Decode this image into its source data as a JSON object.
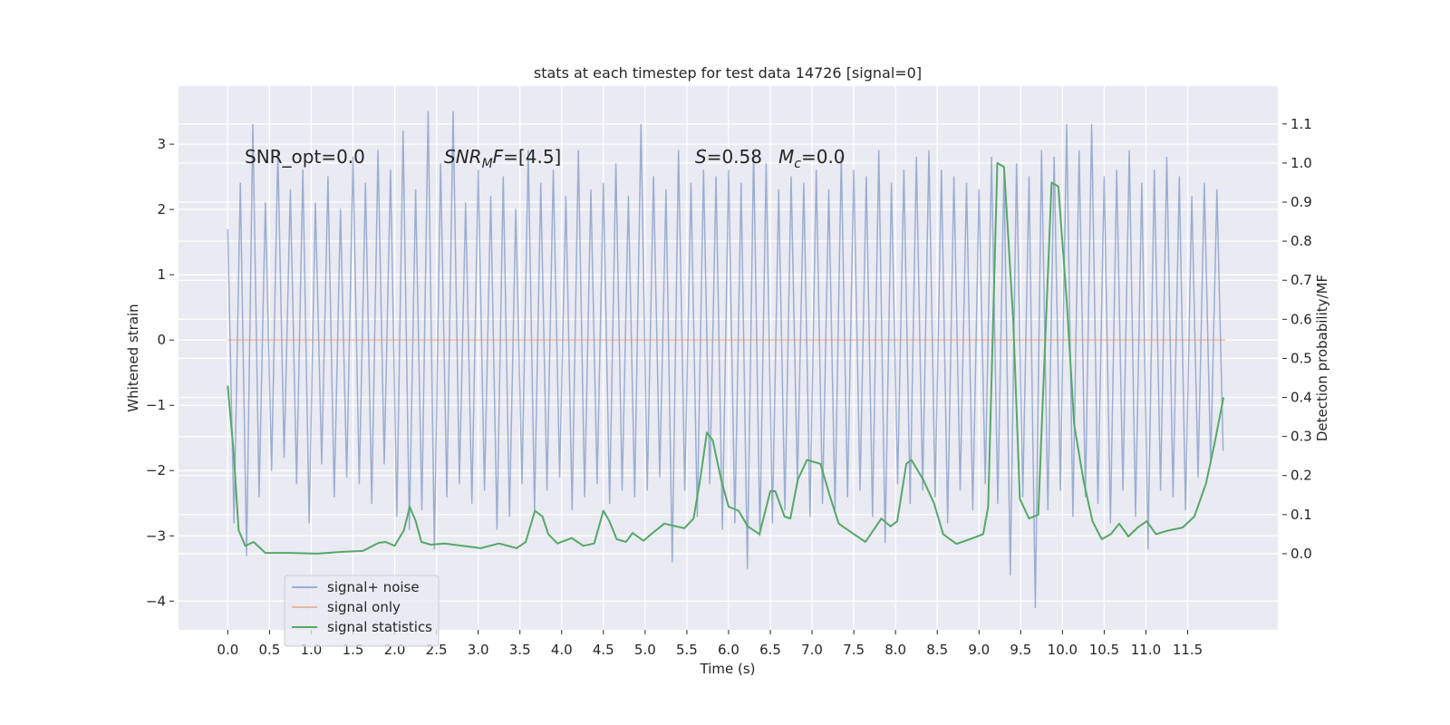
{
  "chart_data": {
    "type": "line",
    "title": "stats at each timestep for test data 14726 [signal=0]",
    "x_label": "Time (s)",
    "y_label": "Whitened strain",
    "y2_label": "Detection probability/MF",
    "xlim": [
      -0.59,
      12.58
    ],
    "ylim": [
      -4.44,
      3.89
    ],
    "y2lim": [
      -0.195,
      1.197
    ],
    "xticks": [
      {
        "value": 0,
        "label": "0.0"
      },
      0.5,
      {
        "value": 1,
        "label": "1.0"
      },
      1.5,
      {
        "value": 2,
        "label": "2.0"
      },
      2.5,
      {
        "value": 3,
        "label": "3.0"
      },
      3.5,
      {
        "value": 4,
        "label": "4.0"
      },
      4.5,
      {
        "value": 5,
        "label": "5.0"
      },
      5.5,
      {
        "value": 6,
        "label": "6.0"
      },
      6.5,
      {
        "value": 7,
        "label": "7.0"
      },
      7.5,
      {
        "value": 8,
        "label": "8.0"
      },
      8.5,
      {
        "value": 9,
        "label": "9.0"
      },
      9.5,
      {
        "value": 10,
        "label": "10.0"
      },
      10.5,
      {
        "value": 11,
        "label": "11.0"
      },
      11.5
    ],
    "yticks": [
      {
        "value": -4,
        "label": "−4"
      },
      {
        "value": -3,
        "label": "−3"
      },
      {
        "value": -2,
        "label": "−2"
      },
      {
        "value": -1,
        "label": "−1"
      },
      0,
      1,
      2,
      3
    ],
    "y2ticks": [
      {
        "value": 0,
        "label": "0.0"
      },
      0.1,
      0.2,
      0.3,
      0.4,
      0.5,
      0.6,
      0.7,
      0.8,
      0.9,
      {
        "value": 1,
        "label": "1.0"
      },
      1.1
    ],
    "grid": true,
    "legend": "lower left",
    "annotations": [
      [
        {
          "text": "SNR_opt=0.0",
          "style": "normal"
        }
      ],
      [
        {
          "text": "SNR",
          "style": "italic"
        },
        {
          "text": "M",
          "style": "sub"
        },
        {
          "text": "F",
          "style": "italic"
        },
        {
          "text": "=[4.5]",
          "style": "normal"
        }
      ],
      [
        {
          "text": "S",
          "style": "italic"
        },
        {
          "text": "=0.58",
          "style": "normal"
        }
      ],
      [
        {
          "text": "M",
          "style": "italic"
        },
        {
          "text": "c",
          "style": "sub"
        },
        {
          "text": "=0.0",
          "style": "normal"
        }
      ]
    ],
    "series": [
      {
        "name": "signal+ noise",
        "color": "#4c72b0",
        "alpha": 0.5,
        "axis": "y",
        "x": [
          0,
          0.075,
          0.15,
          0.225,
          0.3,
          0.375,
          0.45,
          0.525,
          0.6,
          0.675,
          0.75,
          0.825,
          0.9,
          0.975,
          1.05,
          1.125,
          1.2,
          1.275,
          1.35,
          1.425,
          1.5,
          1.575,
          1.65,
          1.725,
          1.8,
          1.875,
          1.95,
          2.025,
          2.1,
          2.175,
          2.25,
          2.325,
          2.4,
          2.475,
          2.55,
          2.625,
          2.7,
          2.775,
          2.85,
          2.925,
          3,
          3.075,
          3.15,
          3.225,
          3.3,
          3.375,
          3.45,
          3.525,
          3.6,
          3.675,
          3.75,
          3.825,
          3.9,
          3.975,
          4.05,
          4.125,
          4.2,
          4.275,
          4.35,
          4.425,
          4.5,
          4.575,
          4.65,
          4.725,
          4.8,
          4.875,
          4.95,
          5.025,
          5.1,
          5.175,
          5.25,
          5.325,
          5.4,
          5.475,
          5.55,
          5.625,
          5.7,
          5.775,
          5.85,
          5.925,
          6,
          6.075,
          6.15,
          6.225,
          6.3,
          6.375,
          6.45,
          6.525,
          6.6,
          6.675,
          6.75,
          6.825,
          6.9,
          6.975,
          7.05,
          7.125,
          7.2,
          7.275,
          7.35,
          7.425,
          7.5,
          7.575,
          7.65,
          7.725,
          7.8,
          7.875,
          7.95,
          8.025,
          8.1,
          8.175,
          8.25,
          8.325,
          8.4,
          8.475,
          8.55,
          8.625,
          8.7,
          8.775,
          8.85,
          8.925,
          9,
          9.075,
          9.15,
          9.225,
          9.3,
          9.375,
          9.45,
          9.525,
          9.6,
          9.675,
          9.75,
          9.825,
          9.9,
          9.975,
          10.05,
          10.125,
          10.2,
          10.275,
          10.35,
          10.425,
          10.5,
          10.575,
          10.65,
          10.725,
          10.8,
          10.875,
          10.95,
          11.025,
          11.1,
          11.175,
          11.25,
          11.325,
          11.4,
          11.475,
          11.55,
          11.625,
          11.7,
          11.775,
          11.85,
          11.925
        ],
        "values": [
          1.7,
          -2.8,
          2.4,
          -3.3,
          3.3,
          -2.4,
          2.1,
          -2.0,
          2.9,
          -1.8,
          2.3,
          -2.2,
          2.6,
          -2.8,
          2.1,
          -1.9,
          2.5,
          -2.4,
          2.0,
          -2.1,
          2.8,
          -2.2,
          2.4,
          -2.5,
          2.9,
          -1.9,
          2.6,
          -2.7,
          3.2,
          -2.9,
          2.3,
          -2.6,
          3.5,
          -3.2,
          2.7,
          -2.4,
          3.5,
          -2.2,
          2.1,
          -2.5,
          2.6,
          -2.3,
          2.2,
          -2.9,
          2.5,
          -2.7,
          2.0,
          -2.2,
          2.9,
          -2.6,
          2.4,
          -2.3,
          2.6,
          -2.1,
          2.2,
          -2.6,
          2.9,
          -2.4,
          2.3,
          -2.2,
          2.4,
          -2.5,
          2.7,
          -2.3,
          2.2,
          -2.4,
          3.3,
          -2.3,
          2.5,
          -2.1,
          2.3,
          -3.4,
          2.9,
          -2.3,
          2.4,
          -2.7,
          2.6,
          -2.2,
          2.5,
          -2.9,
          2.6,
          -2.8,
          2.4,
          -3.5,
          2.9,
          -3.0,
          2.7,
          -2.8,
          2.3,
          -2.6,
          2.5,
          -2.2,
          2.4,
          -2.7,
          2.6,
          -2.5,
          2.3,
          -2.6,
          2.8,
          -2.4,
          2.6,
          -2.3,
          2.5,
          -2.7,
          2.9,
          -3.1,
          2.4,
          -2.2,
          2.6,
          -2.5,
          2.8,
          -2.3,
          2.9,
          -2.4,
          2.6,
          -2.8,
          2.5,
          -2.3,
          2.4,
          -2.6,
          2.3,
          -2.2,
          2.8,
          -2.5,
          2.6,
          -3.6,
          2.7,
          -2.4,
          2.5,
          -4.1,
          2.9,
          -2.6,
          2.8,
          -2.3,
          3.3,
          -2.7,
          2.9,
          -2.4,
          3.3,
          -2.5,
          2.5,
          -2.8,
          2.6,
          -2.3,
          2.9,
          -2.7,
          2.4,
          -3.2,
          2.6,
          -2.3,
          2.8,
          -2.4,
          2.5,
          -2.6,
          2.2,
          -2.1,
          2.4,
          -1.9,
          2.3,
          -1.7
        ]
      },
      {
        "name": "signal only",
        "color": "#dd8452",
        "alpha": 0.5,
        "axis": "y",
        "x": [
          0,
          11.95
        ],
        "values": [
          0,
          0
        ]
      },
      {
        "name": "signal statistics",
        "color": "#55a868",
        "alpha": 1,
        "axis": "y2",
        "x": [
          0,
          0.07,
          0.13,
          0.21,
          0.31,
          0.45,
          0.75,
          1.07,
          1.4,
          1.62,
          1.81,
          1.89,
          2.0,
          2.11,
          2.18,
          2.25,
          2.32,
          2.43,
          2.6,
          2.81,
          3.03,
          3.25,
          3.46,
          3.57,
          3.68,
          3.77,
          3.84,
          3.95,
          4.12,
          4.26,
          4.39,
          4.5,
          4.57,
          4.66,
          4.77,
          4.85,
          4.98,
          5.09,
          5.23,
          5.47,
          5.58,
          5.66,
          5.74,
          5.81,
          5.91,
          6.0,
          6.12,
          6.23,
          6.37,
          6.5,
          6.56,
          6.67,
          6.74,
          6.83,
          6.94,
          7.1,
          7.21,
          7.32,
          7.48,
          7.64,
          7.83,
          7.94,
          8.02,
          8.13,
          8.19,
          8.33,
          8.46,
          8.57,
          8.73,
          8.89,
          9.05,
          9.11,
          9.22,
          9.3,
          9.41,
          9.49,
          9.6,
          9.71,
          9.76,
          9.87,
          9.95,
          10.05,
          10.14,
          10.25,
          10.36,
          10.47,
          10.58,
          10.68,
          10.79,
          10.9,
          11.01,
          11.12,
          11.28,
          11.44,
          11.58,
          11.72,
          11.82,
          11.93
        ],
        "values": [
          0.43,
          0.26,
          0.06,
          0.02,
          0.03,
          0.002,
          0.002,
          0.0,
          0.005,
          0.007,
          0.028,
          0.03,
          0.02,
          0.06,
          0.12,
          0.084,
          0.03,
          0.023,
          0.026,
          0.02,
          0.014,
          0.026,
          0.014,
          0.03,
          0.11,
          0.095,
          0.05,
          0.026,
          0.04,
          0.02,
          0.026,
          0.11,
          0.084,
          0.037,
          0.03,
          0.053,
          0.033,
          0.053,
          0.077,
          0.065,
          0.09,
          0.19,
          0.31,
          0.29,
          0.19,
          0.12,
          0.11,
          0.07,
          0.05,
          0.16,
          0.16,
          0.095,
          0.09,
          0.19,
          0.24,
          0.23,
          0.15,
          0.077,
          0.053,
          0.03,
          0.09,
          0.07,
          0.083,
          0.23,
          0.24,
          0.19,
          0.13,
          0.05,
          0.025,
          0.037,
          0.05,
          0.12,
          1.0,
          0.99,
          0.6,
          0.14,
          0.09,
          0.1,
          0.37,
          0.95,
          0.94,
          0.65,
          0.33,
          0.19,
          0.083,
          0.037,
          0.05,
          0.077,
          0.044,
          0.067,
          0.083,
          0.05,
          0.06,
          0.067,
          0.095,
          0.18,
          0.28,
          0.4
        ]
      }
    ]
  }
}
